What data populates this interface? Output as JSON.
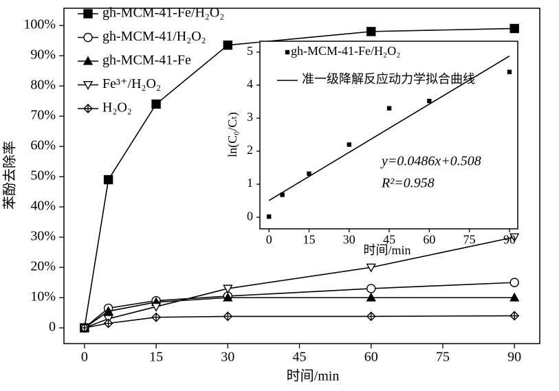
{
  "chart_data": [
    {
      "type": "line",
      "x_label": "时间/min",
      "y_label": "苯酚去除率",
      "x": [
        0,
        5,
        15,
        30,
        60,
        90
      ],
      "xlim": [
        -4.3,
        95.3
      ],
      "xticks": [
        0,
        15,
        30,
        45,
        60,
        75,
        90
      ],
      "ylim": [
        -5.2,
        105.7
      ],
      "yticks": [
        0,
        {
          "value": 10,
          "label": "10%"
        },
        {
          "value": 20,
          "label": "20%"
        },
        {
          "value": 30,
          "label": "30%"
        },
        {
          "value": 40,
          "label": "40%"
        },
        {
          "value": 50,
          "label": "50%"
        },
        {
          "value": 60,
          "label": "60%"
        },
        {
          "value": 70,
          "label": "70%"
        },
        {
          "value": 80,
          "label": "80%"
        },
        {
          "value": 90,
          "label": "90%"
        },
        {
          "value": 100,
          "label": "100%"
        }
      ],
      "legend": "upper left",
      "series": [
        {
          "name": "gh-MCM-41-Fe/H₂O₂",
          "color": "#000000",
          "marker": "square",
          "values": [
            0,
            49,
            74,
            93.5,
            98,
            99
          ]
        },
        {
          "name": "gh-MCM-41/H₂O₂",
          "color": "#000000",
          "marker": "circle",
          "values": [
            0,
            6.5,
            9,
            10.5,
            13,
            15
          ]
        },
        {
          "name": "gh-MCM-41-Fe",
          "color": "#000000",
          "marker": "triangle",
          "values": [
            0,
            5.5,
            8.5,
            10,
            10,
            10
          ]
        },
        {
          "name": "Fe³⁺/H₂O₂",
          "color": "#000000",
          "marker": "triangle-down",
          "values": [
            0,
            3,
            7,
            13,
            20,
            30
          ]
        },
        {
          "name": "H₂O₂",
          "color": "#000000",
          "marker": "diamond",
          "values": [
            0,
            1.5,
            3.5,
            3.8,
            3.8,
            4
          ]
        }
      ]
    },
    {
      "type": "scatter",
      "x_label": "时间/min",
      "y_label": "ln(C₀/Cₜ)",
      "xlim": [
        -3.4,
        93.1
      ],
      "xticks": [
        0,
        15,
        30,
        45,
        60,
        75,
        90
      ],
      "ylim": [
        -0.35,
        5.33
      ],
      "yticks": [
        0,
        1,
        2,
        3,
        4,
        5
      ],
      "legend": "upper left",
      "annotations": [
        "y=0.0486x+0.508",
        "R²=0.958"
      ],
      "series": [
        {
          "name": "gh-MCM-41-Fe/H₂O₂",
          "color": "#000000",
          "marker": "square",
          "x": [
            0,
            5,
            15,
            30,
            45,
            60,
            90
          ],
          "values": [
            0.02,
            0.68,
            1.32,
            2.2,
            3.3,
            3.52,
            4.4
          ]
        },
        {
          "name": "准一级降解反应动力学拟合曲线",
          "color": "#000000",
          "marker": "none",
          "x": [
            0,
            90
          ],
          "values": [
            0.508,
            4.882
          ]
        }
      ]
    }
  ]
}
